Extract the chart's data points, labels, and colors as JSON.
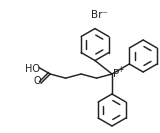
{
  "background_color": "#ffffff",
  "br_label": "Br",
  "br_minus": "⁻",
  "p_label": "P",
  "p_plus": "+",
  "ho_label": "HO",
  "o_label": "O",
  "figure_width": 1.6,
  "figure_height": 1.33,
  "dpi": 100,
  "line_color": "#222222",
  "line_width": 1.05,
  "font_size_labels": 7.0,
  "font_size_br": 7.5,
  "font_size_p": 7.5,
  "font_size_plus": 5.5
}
